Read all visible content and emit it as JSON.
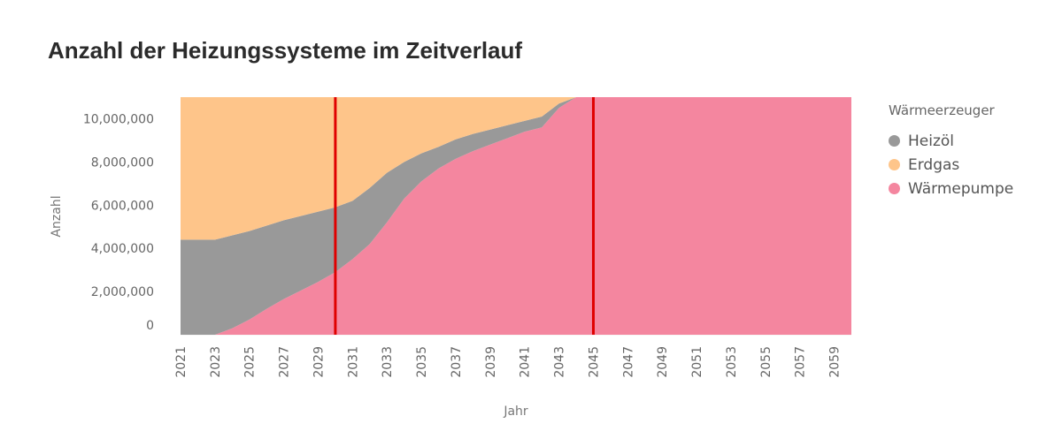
{
  "chart_data": {
    "type": "area",
    "title": "Anzahl der Heizungssysteme im Zeitverlauf",
    "xlabel": "Jahr",
    "ylabel": "Anzahl",
    "xlim": [
      2021,
      2060
    ],
    "ylim": [
      0,
      11000000
    ],
    "x_ticks": [
      "2021",
      "2023",
      "2025",
      "2027",
      "2029",
      "2031",
      "2033",
      "2035",
      "2037",
      "2039",
      "2041",
      "2043",
      "2045",
      "2047",
      "2049",
      "2051",
      "2053",
      "2055",
      "2057",
      "2059"
    ],
    "y_ticks": [
      {
        "value": 0,
        "label": "0"
      },
      {
        "value": 2000000,
        "label": "2,000,000"
      },
      {
        "value": 4000000,
        "label": "4,000,000"
      },
      {
        "value": 6000000,
        "label": "6,000,000"
      },
      {
        "value": 8000000,
        "label": "8,000,000"
      },
      {
        "value": 10000000,
        "label": "10,000,000"
      }
    ],
    "legend_title": "Wärmeerzeuger",
    "legend_position": "right",
    "stacked": true,
    "vertical_markers": [
      2030,
      2045
    ],
    "marker_color": "#e00000",
    "x": [
      2021,
      2022,
      2023,
      2024,
      2025,
      2026,
      2027,
      2028,
      2029,
      2030,
      2031,
      2032,
      2033,
      2034,
      2035,
      2036,
      2037,
      2038,
      2039,
      2040,
      2041,
      2042,
      2043,
      2044,
      2045,
      2046,
      2047,
      2048,
      2049,
      2050,
      2051,
      2052,
      2053,
      2054,
      2055,
      2056,
      2057,
      2058,
      2059,
      2060
    ],
    "series": [
      {
        "name": "Wärmepumpe",
        "color": "#f4869f",
        "values": [
          0,
          0,
          0,
          300000,
          700000,
          1200000,
          1650000,
          2050000,
          2450000,
          2900000,
          3500000,
          4200000,
          5200000,
          6300000,
          7100000,
          7700000,
          8150000,
          8500000,
          8800000,
          9100000,
          9400000,
          9600000,
          10500000,
          11000000,
          11000000,
          11000000,
          11000000,
          11000000,
          11000000,
          11000000,
          11000000,
          11000000,
          11000000,
          11000000,
          11000000,
          11000000,
          11000000,
          11000000,
          11000000,
          11000000
        ]
      },
      {
        "name": "Heizöl",
        "color": "#999999",
        "values": [
          4400000,
          4400000,
          4400000,
          4300000,
          4100000,
          3850000,
          3650000,
          3450000,
          3250000,
          3000000,
          2700000,
          2600000,
          2300000,
          1700000,
          1300000,
          1000000,
          900000,
          800000,
          700000,
          600000,
          500000,
          500000,
          200000,
          0,
          0,
          0,
          0,
          0,
          0,
          0,
          0,
          0,
          0,
          0,
          0,
          0,
          0,
          0,
          0,
          0
        ]
      },
      {
        "name": "Erdgas",
        "color": "#fec58a",
        "values": [
          6600000,
          6600000,
          6600000,
          6400000,
          6200000,
          5950000,
          5700000,
          5500000,
          5300000,
          5100000,
          4800000,
          4200000,
          3500000,
          3000000,
          2600000,
          2300000,
          1950000,
          1700000,
          1500000,
          1300000,
          1100000,
          900000,
          300000,
          0,
          0,
          0,
          0,
          0,
          0,
          0,
          0,
          0,
          0,
          0,
          0,
          0,
          0,
          0,
          0,
          0
        ]
      }
    ]
  }
}
